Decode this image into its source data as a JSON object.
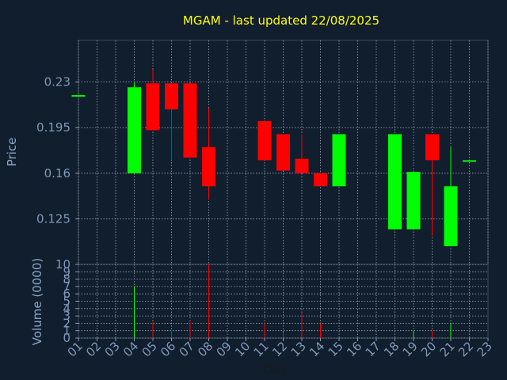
{
  "chart_data": {
    "type": "candlestick",
    "title": "MGAM - last updated 22/08/2025",
    "xlabel": "Day",
    "price_panel": {
      "ylabel": "Price",
      "yticks": [
        "0.23",
        "0.195",
        "0.16",
        "0.125"
      ],
      "ylim": [
        0.09,
        0.262
      ]
    },
    "volume_panel": {
      "ylabel": "Volume (0000)",
      "yticks": [
        "10",
        "9",
        "8",
        "7",
        "6",
        "5",
        "4",
        "3",
        "2",
        "1",
        "0"
      ],
      "ylim": [
        0,
        10
      ]
    },
    "x_ticks": [
      "01",
      "02",
      "03",
      "04",
      "05",
      "06",
      "07",
      "08",
      "09",
      "10",
      "11",
      "12",
      "13",
      "14",
      "15",
      "16",
      "17",
      "18",
      "19",
      "20",
      "21",
      "22",
      "23"
    ],
    "up_color": "#00ff00",
    "down_color": "#ff0000",
    "background": "#111e2e",
    "title_color": "#ffff00",
    "candles": [
      {
        "day": 1,
        "open": 0.22,
        "high": 0.22,
        "low": 0.22,
        "close": 0.22,
        "volume": 0
      },
      {
        "day": 4,
        "open": 0.16,
        "high": 0.23,
        "low": 0.16,
        "close": 0.226,
        "volume": 7
      },
      {
        "day": 5,
        "open": 0.229,
        "high": 0.24,
        "low": 0.193,
        "close": 0.193,
        "volume": 2.2
      },
      {
        "day": 6,
        "open": 0.229,
        "high": 0.229,
        "low": 0.17,
        "close": 0.209,
        "volume": 1
      },
      {
        "day": 7,
        "open": 0.229,
        "high": 0.229,
        "low": 0.172,
        "close": 0.172,
        "volume": 2.2
      },
      {
        "day": 8,
        "open": 0.18,
        "high": 0.21,
        "low": 0.14,
        "close": 0.15,
        "volume": 10
      },
      {
        "day": 11,
        "open": 0.2,
        "high": 0.2,
        "low": 0.17,
        "close": 0.17,
        "volume": 2
      },
      {
        "day": 12,
        "open": 0.19,
        "high": 0.19,
        "low": 0.162,
        "close": 0.162,
        "volume": 0.8
      },
      {
        "day": 13,
        "open": 0.171,
        "high": 0.19,
        "low": 0.16,
        "close": 0.16,
        "volume": 3.5
      },
      {
        "day": 14,
        "open": 0.16,
        "high": 0.16,
        "low": 0.15,
        "close": 0.15,
        "volume": 2
      },
      {
        "day": 15,
        "open": 0.15,
        "high": 0.19,
        "low": 0.15,
        "close": 0.19,
        "volume": 0
      },
      {
        "day": 18,
        "open": 0.117,
        "high": 0.19,
        "low": 0.117,
        "close": 0.19,
        "volume": 0
      },
      {
        "day": 19,
        "open": 0.117,
        "high": 0.161,
        "low": 0.117,
        "close": 0.161,
        "volume": 1
      },
      {
        "day": 20,
        "open": 0.19,
        "high": 0.19,
        "low": 0.112,
        "close": 0.17,
        "volume": 1
      },
      {
        "day": 21,
        "open": 0.104,
        "high": 0.18,
        "low": 0.104,
        "close": 0.15,
        "volume": 2
      },
      {
        "day": 22,
        "open": 0.17,
        "high": 0.17,
        "low": 0.17,
        "close": 0.17,
        "volume": 0
      }
    ]
  }
}
